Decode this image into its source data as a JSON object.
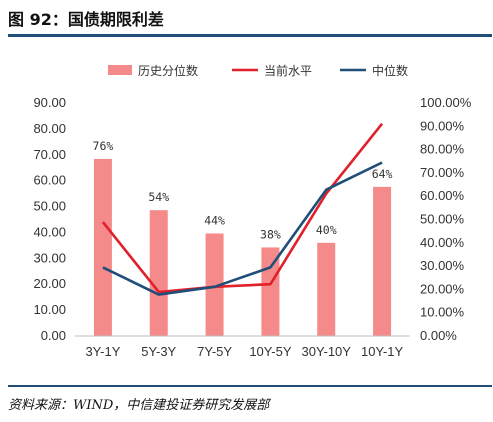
{
  "figure": {
    "title": "图 92：国债期限利差",
    "source": "资料来源：WIND，中信建投证券研究发展部"
  },
  "colors": {
    "bar": "#f58a8a",
    "current_line": "#e0202a",
    "median_line": "#1f4e79",
    "rule": "#1f4e79"
  },
  "chart_data": {
    "type": "bar",
    "categories": [
      "3Y-1Y",
      "5Y-3Y",
      "7Y-5Y",
      "10Y-5Y",
      "30Y-10Y",
      "10Y-1Y"
    ],
    "series": [
      {
        "name": "历史分位数",
        "type": "bar",
        "axis": "right",
        "values": [
          0.76,
          0.54,
          0.44,
          0.38,
          0.4,
          0.64
        ],
        "labels": [
          "76%",
          "54%",
          "44%",
          "38%",
          "40%",
          "64%"
        ]
      },
      {
        "name": "当前水平",
        "type": "line",
        "axis": "left",
        "values": [
          44,
          17,
          19,
          20,
          55,
          82
        ]
      },
      {
        "name": "中位数",
        "type": "line",
        "axis": "left",
        "values": [
          26.5,
          16,
          19,
          26.5,
          56.5,
          67
        ]
      }
    ],
    "left_axis": {
      "min": 0,
      "max": 90,
      "step": 10,
      "ticks": [
        "0.00",
        "10.00",
        "20.00",
        "30.00",
        "40.00",
        "50.00",
        "60.00",
        "70.00",
        "80.00",
        "90.00"
      ]
    },
    "right_axis": {
      "min": 0,
      "max": 1,
      "step": 0.1,
      "ticks": [
        "0.00%",
        "10.00%",
        "20.00%",
        "30.00%",
        "40.00%",
        "50.00%",
        "60.00%",
        "70.00%",
        "80.00%",
        "90.00%",
        "100.00%"
      ]
    },
    "grid": false,
    "legend_position": "top"
  }
}
